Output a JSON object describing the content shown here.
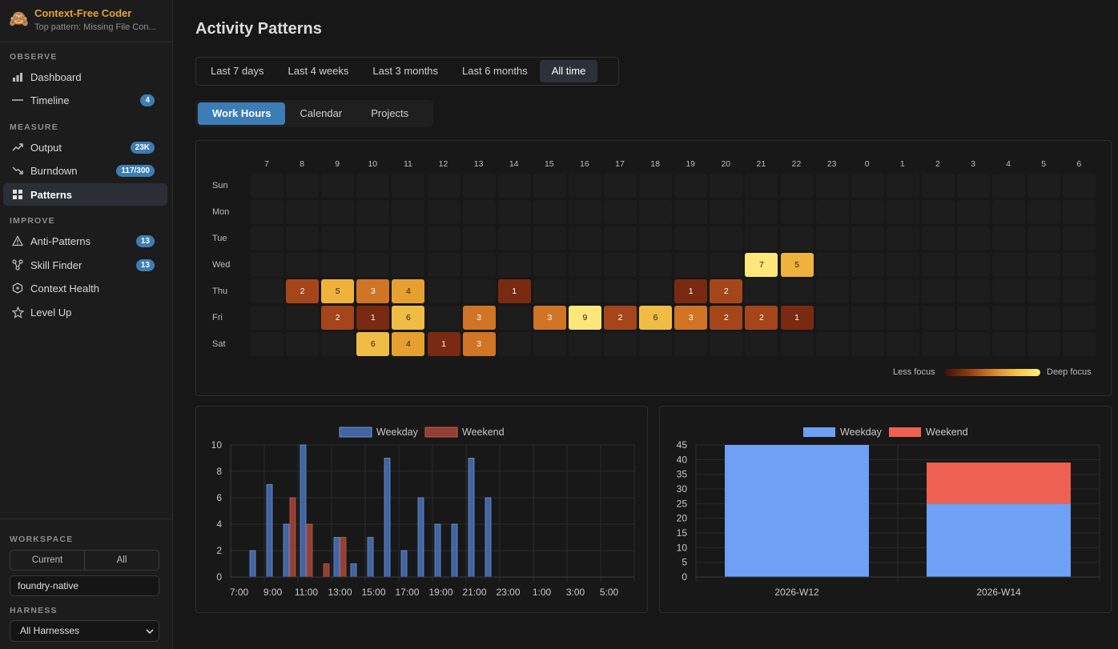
{
  "app": {
    "name": "Context-Free Coder",
    "subtitle": "Top pattern: Missing File Con...",
    "logo_icon": "monkey-icon"
  },
  "sidebar": {
    "sections": [
      {
        "label": "OBSERVE",
        "items": [
          {
            "label": "Dashboard",
            "icon": "bar-chart-icon",
            "badge": null
          },
          {
            "label": "Timeline",
            "icon": "line-icon",
            "badge": "4"
          }
        ]
      },
      {
        "label": "MEASURE",
        "items": [
          {
            "label": "Output",
            "icon": "trend-up-icon",
            "badge": "23K"
          },
          {
            "label": "Burndown",
            "icon": "trend-down-icon",
            "badge": "117/300"
          },
          {
            "label": "Patterns",
            "icon": "grid-icon",
            "badge": null,
            "active": true
          }
        ]
      },
      {
        "label": "IMPROVE",
        "items": [
          {
            "label": "Anti-Patterns",
            "icon": "warning-icon",
            "badge": "13"
          },
          {
            "label": "Skill Finder",
            "icon": "nodes-icon",
            "badge": "13"
          },
          {
            "label": "Context Health",
            "icon": "hexagon-icon",
            "badge": null
          },
          {
            "label": "Level Up",
            "icon": "star-icon",
            "badge": null
          }
        ]
      }
    ],
    "workspace": {
      "label": "WORKSPACE",
      "options": [
        "Current",
        "All"
      ],
      "value": "foundry-native"
    },
    "harness": {
      "label": "HARNESS",
      "selected": "All Harnesses"
    }
  },
  "main": {
    "title": "Activity Patterns",
    "ranges": [
      "Last 7 days",
      "Last 4 weeks",
      "Last 3 months",
      "Last 6 months",
      "All time"
    ],
    "active_range": 4,
    "views": [
      "Work Hours",
      "Calendar",
      "Projects"
    ],
    "active_view": 0,
    "heatmap": {
      "hours": [
        "7",
        "8",
        "9",
        "10",
        "11",
        "12",
        "13",
        "14",
        "15",
        "16",
        "17",
        "18",
        "19",
        "20",
        "21",
        "22",
        "23",
        "0",
        "1",
        "2",
        "3",
        "4",
        "5",
        "6"
      ],
      "days": [
        "Sun",
        "Mon",
        "Tue",
        "Wed",
        "Thu",
        "Fri",
        "Sat"
      ],
      "cells": [
        {
          "day": 3,
          "hour": 14,
          "value": 7
        },
        {
          "day": 3,
          "hour": 15,
          "value": 5
        },
        {
          "day": 4,
          "hour": 1,
          "value": 2
        },
        {
          "day": 4,
          "hour": 2,
          "value": 5
        },
        {
          "day": 4,
          "hour": 3,
          "value": 3
        },
        {
          "day": 4,
          "hour": 4,
          "value": 4
        },
        {
          "day": 4,
          "hour": 7,
          "value": 1
        },
        {
          "day": 4,
          "hour": 12,
          "value": 1
        },
        {
          "day": 4,
          "hour": 13,
          "value": 2
        },
        {
          "day": 5,
          "hour": 2,
          "value": 2
        },
        {
          "day": 5,
          "hour": 3,
          "value": 1
        },
        {
          "day": 5,
          "hour": 4,
          "value": 6
        },
        {
          "day": 5,
          "hour": 6,
          "value": 3
        },
        {
          "day": 5,
          "hour": 8,
          "value": 3
        },
        {
          "day": 5,
          "hour": 9,
          "value": 9
        },
        {
          "day": 5,
          "hour": 10,
          "value": 2
        },
        {
          "day": 5,
          "hour": 11,
          "value": 6
        },
        {
          "day": 5,
          "hour": 12,
          "value": 3
        },
        {
          "day": 5,
          "hour": 13,
          "value": 2
        },
        {
          "day": 5,
          "hour": 14,
          "value": 2
        },
        {
          "day": 5,
          "hour": 15,
          "value": 1
        },
        {
          "day": 6,
          "hour": 3,
          "value": 6
        },
        {
          "day": 6,
          "hour": 4,
          "value": 4
        },
        {
          "day": 6,
          "hour": 5,
          "value": 1
        },
        {
          "day": 6,
          "hour": 6,
          "value": 3
        }
      ],
      "legend_less": "Less focus",
      "legend_deep": "Deep focus"
    }
  },
  "chart_data": [
    {
      "type": "bar",
      "legend": [
        "Weekday",
        "Weekend"
      ],
      "legend_position": "top",
      "x_ticks": [
        "7:00",
        "9:00",
        "11:00",
        "13:00",
        "15:00",
        "17:00",
        "19:00",
        "21:00",
        "23:00",
        "1:00",
        "3:00",
        "5:00"
      ],
      "y_ticks": [
        0,
        2,
        4,
        6,
        8,
        10
      ],
      "ylim": [
        0,
        10
      ],
      "hours": [
        7,
        8,
        9,
        10,
        11,
        12,
        13,
        14,
        15,
        16,
        17,
        18,
        19,
        20,
        21,
        22,
        23,
        0,
        1,
        2,
        3,
        4,
        5,
        6
      ],
      "series": [
        {
          "name": "Weekday",
          "color": "#4a72b8",
          "values": [
            0,
            2,
            7,
            4,
            10,
            0,
            3,
            1,
            3,
            9,
            2,
            6,
            4,
            4,
            9,
            6,
            0,
            0,
            0,
            0,
            0,
            0,
            0,
            0
          ]
        },
        {
          "name": "Weekend",
          "color": "#a8463a",
          "values": [
            0,
            0,
            0,
            6,
            4,
            1,
            3,
            0,
            0,
            0,
            0,
            0,
            0,
            0,
            0,
            0,
            0,
            0,
            0,
            0,
            0,
            0,
            0,
            0
          ]
        }
      ],
      "grid": true
    },
    {
      "type": "bar",
      "stacked": true,
      "legend": [
        "Weekday",
        "Weekend"
      ],
      "legend_position": "top",
      "categories": [
        "2026-W12",
        "2026-W14"
      ],
      "y_ticks": [
        0,
        5,
        10,
        15,
        20,
        25,
        30,
        35,
        40,
        45
      ],
      "ylim": [
        0,
        45
      ],
      "series": [
        {
          "name": "Weekday",
          "color": "#6ea0f5",
          "values": [
            45,
            25
          ]
        },
        {
          "name": "Weekend",
          "color": "#ee6052",
          "values": [
            0,
            14
          ]
        }
      ],
      "grid": true
    }
  ]
}
